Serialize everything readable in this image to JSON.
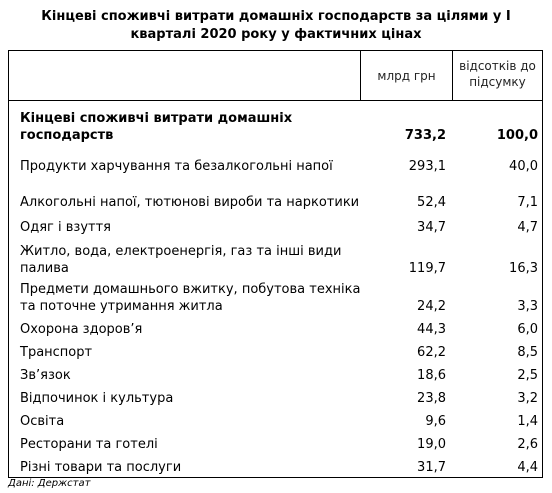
{
  "title_line1": "Кінцеві споживчі витрати домашніх господарств за цілями у І",
  "title_line2": "кварталі 2020 року у фактичних цінах",
  "headers": {
    "mlrd": "млрд грн",
    "pct_line1": "відсотків до",
    "pct_line2": "підсумку"
  },
  "rows": [
    {
      "label1": "Кінцеві споживчі витрати домашніх",
      "label2": "господарств",
      "v1": "733,2",
      "v2": "100,0"
    },
    {
      "label1": "Продукти харчування та безалкогольні напої",
      "label2": "",
      "v1": "293,1",
      "v2": "40,0"
    },
    {
      "label1": "Алкогольні напої, тютюнові вироби та наркотики",
      "label2": "",
      "v1": "52,4",
      "v2": "7,1"
    },
    {
      "label1": "Одяг і взуття",
      "label2": "",
      "v1": "34,7",
      "v2": "4,7"
    },
    {
      "label1": "Житло, вода, електроенергія, газ та інші види",
      "label2": "палива",
      "v1": "119,7",
      "v2": "16,3"
    },
    {
      "label1": "Предмети домашнього вжитку, побутова техніка",
      "label2": "та поточне утримання житла",
      "v1": "24,2",
      "v2": "3,3"
    },
    {
      "label1": "Охорона здоров’я",
      "label2": "",
      "v1": "44,3",
      "v2": "6,0"
    },
    {
      "label1": "Транспорт",
      "label2": "",
      "v1": "62,2",
      "v2": "8,5"
    },
    {
      "label1": "Зв’язок",
      "label2": "",
      "v1": "18,6",
      "v2": "2,5"
    },
    {
      "label1": "Відпочинок і культура",
      "label2": "",
      "v1": "23,8",
      "v2": "3,2"
    },
    {
      "label1": "Освіта",
      "label2": "",
      "v1": "9,6",
      "v2": "1,4"
    },
    {
      "label1": "Ресторани та готелі",
      "label2": "",
      "v1": "19,0",
      "v2": "2,6"
    },
    {
      "label1": "Різні товари та послуги",
      "label2": "",
      "v1": "31,7",
      "v2": "4,4"
    }
  ],
  "source": "Дані: Держстат"
}
